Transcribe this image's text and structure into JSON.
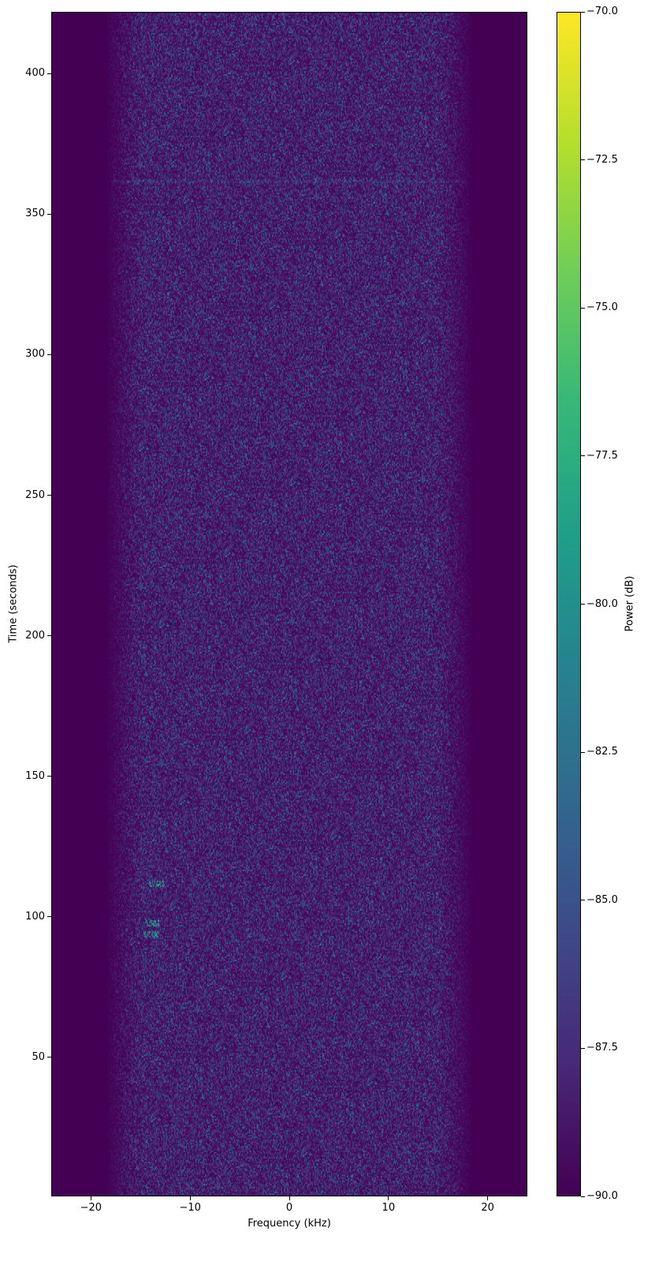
{
  "chart_data": {
    "type": "heatmap",
    "title": "",
    "xlabel": "Frequency (kHz)",
    "ylabel": "Time (seconds)",
    "xlim": [
      -24,
      24
    ],
    "ylim": [
      0.5,
      422
    ],
    "xticks": [
      -20,
      -10,
      0,
      10,
      20
    ],
    "xtick_labels": [
      "−20",
      "−10",
      "0",
      "10",
      "20"
    ],
    "yticks": [
      50,
      100,
      150,
      200,
      250,
      300,
      350,
      400
    ],
    "ytick_labels": [
      "50",
      "100",
      "150",
      "200",
      "250",
      "300",
      "350",
      "400"
    ],
    "colorbar": {
      "label": "Power (dB)",
      "colormap": "viridis",
      "clim": [
        -90,
        -70
      ],
      "ticks": [
        -90,
        -87.5,
        -85,
        -82.5,
        -80,
        -77.5,
        -75,
        -72.5,
        -70
      ],
      "tick_labels": [
        "−90.0",
        "−87.5",
        "−85.0",
        "−82.5",
        "−80.0",
        "−77.5",
        "−75.0",
        "−72.5",
        "−70.0"
      ]
    },
    "features": {
      "noise_band_khz": [
        -18,
        18
      ],
      "background_db": -90,
      "horizontal_line_time_s": 362,
      "signal_bursts": [
        {
          "freq_khz": -13.5,
          "time_s": 112
        },
        {
          "freq_khz": -14,
          "time_s": 98
        },
        {
          "freq_khz": -14,
          "time_s": 94.5
        }
      ]
    },
    "grid": false
  }
}
